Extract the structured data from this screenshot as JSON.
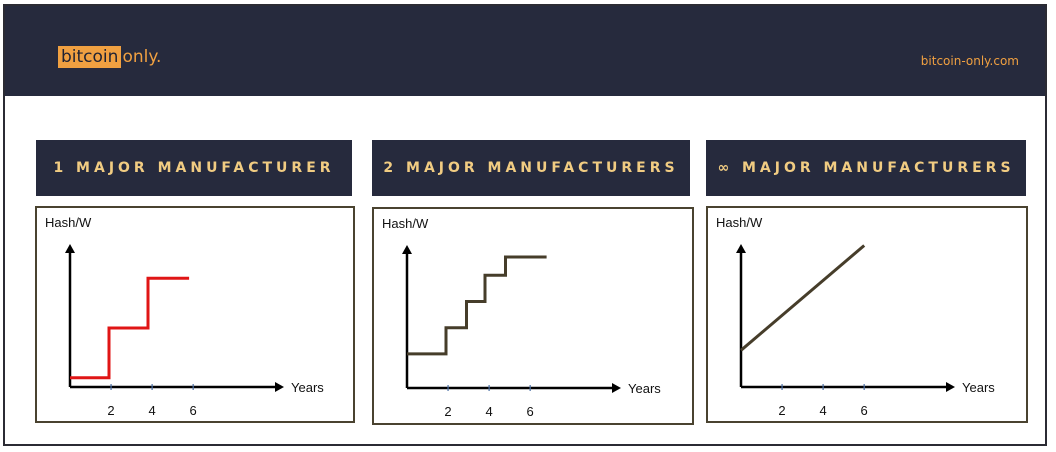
{
  "header": {
    "logo_highlight": "bitcoin",
    "logo_rest": "only.",
    "site": "bitcoin-only.com",
    "bg_color": "#262a3d",
    "accent_color": "#f0a041"
  },
  "chart_data": [
    {
      "type": "line",
      "title": "1 MAJOR MANUFACTURER",
      "ylabel": "Hash/W",
      "xlabel": "Years",
      "x_ticks": [
        2,
        4,
        6
      ],
      "xlim": [
        0,
        9.5
      ],
      "ylim": [
        0,
        10
      ],
      "step": true,
      "series": [
        {
          "color": "#e01515",
          "values": [
            [
              0,
              0.7
            ],
            [
              1.9,
              0.7
            ],
            [
              1.9,
              4.5
            ],
            [
              3.8,
              4.5
            ],
            [
              3.8,
              8.3
            ],
            [
              5.8,
              8.3
            ]
          ]
        }
      ]
    },
    {
      "type": "line",
      "title": "2 MAJOR MANUFACTURERS",
      "ylabel": "Hash/W",
      "xlabel": "Years",
      "x_ticks": [
        2,
        4,
        6
      ],
      "xlim": [
        0,
        9.5
      ],
      "ylim": [
        0,
        10
      ],
      "step": true,
      "series": [
        {
          "color": "#463d2a",
          "values": [
            [
              0,
              2.6
            ],
            [
              1.9,
              2.6
            ],
            [
              1.9,
              4.6
            ],
            [
              2.9,
              4.6
            ],
            [
              2.9,
              6.6
            ],
            [
              3.8,
              6.6
            ],
            [
              3.8,
              8.6
            ],
            [
              4.8,
              8.6
            ],
            [
              4.8,
              10.0
            ],
            [
              6.8,
              10.0
            ]
          ]
        }
      ]
    },
    {
      "type": "line",
      "title": "∞ MAJOR MANUFACTURERS",
      "ylabel": "Hash/W",
      "xlabel": "Years",
      "x_ticks": [
        2,
        4,
        6
      ],
      "xlim": [
        0,
        9.5
      ],
      "ylim": [
        0,
        10
      ],
      "step": false,
      "series": [
        {
          "color": "#463d2a",
          "values": [
            [
              0,
              2.8
            ],
            [
              6.0,
              10.8
            ]
          ]
        }
      ]
    }
  ]
}
